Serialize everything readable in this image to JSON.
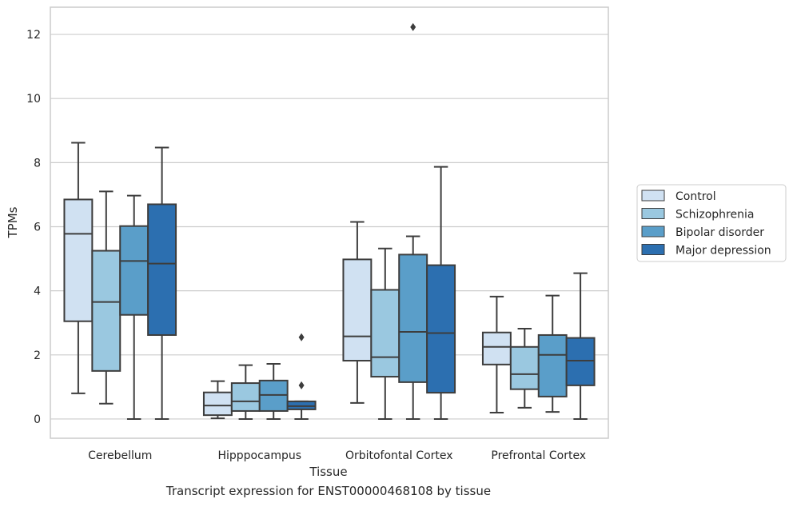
{
  "caption": "Transcript expression for ENST00000468108 by tissue",
  "chart_data": {
    "type": "box",
    "xlabel": "Tissue",
    "ylabel": "TPMs",
    "ylim": [
      -0.6,
      12.85
    ],
    "yticks": [
      0,
      2,
      4,
      6,
      8,
      10,
      12
    ],
    "grid": "horizontal",
    "legend_placement": "outside-right",
    "categories": [
      "Cerebellum",
      "Hipppocampus",
      "Orbitofontal Cortex",
      "Prefrontal Cortex"
    ],
    "series": [
      {
        "name": "Control",
        "color": "#d0e1f2",
        "boxes": [
          {
            "whislo": 0.8,
            "q1": 3.05,
            "med": 5.78,
            "q3": 6.85,
            "whishi": 8.62,
            "fliers": []
          },
          {
            "whislo": 0.02,
            "q1": 0.12,
            "med": 0.42,
            "q3": 0.83,
            "whishi": 1.18,
            "fliers": []
          },
          {
            "whislo": 0.5,
            "q1": 1.82,
            "med": 2.58,
            "q3": 4.98,
            "whishi": 6.15,
            "fliers": []
          },
          {
            "whislo": 0.2,
            "q1": 1.7,
            "med": 2.25,
            "q3": 2.7,
            "whishi": 3.82,
            "fliers": []
          }
        ]
      },
      {
        "name": "Schizophrenia",
        "color": "#9ac8e0",
        "boxes": [
          {
            "whislo": 0.48,
            "q1": 1.5,
            "med": 3.65,
            "q3": 5.25,
            "whishi": 7.1,
            "fliers": []
          },
          {
            "whislo": 0.0,
            "q1": 0.25,
            "med": 0.55,
            "q3": 1.12,
            "whishi": 1.68,
            "fliers": []
          },
          {
            "whislo": 0.0,
            "q1": 1.32,
            "med": 1.93,
            "q3": 4.03,
            "whishi": 5.32,
            "fliers": []
          },
          {
            "whislo": 0.35,
            "q1": 0.93,
            "med": 1.4,
            "q3": 2.25,
            "whishi": 2.82,
            "fliers": []
          }
        ]
      },
      {
        "name": "Bipolar disorder",
        "color": "#5a9ec9",
        "boxes": [
          {
            "whislo": 0.0,
            "q1": 3.25,
            "med": 4.93,
            "q3": 6.02,
            "whishi": 6.97,
            "fliers": []
          },
          {
            "whislo": 0.0,
            "q1": 0.25,
            "med": 0.75,
            "q3": 1.2,
            "whishi": 1.72,
            "fliers": []
          },
          {
            "whislo": 0.0,
            "q1": 1.15,
            "med": 2.72,
            "q3": 5.13,
            "whishi": 5.7,
            "fliers": [
              12.23
            ]
          },
          {
            "whislo": 0.22,
            "q1": 0.7,
            "med": 2.0,
            "q3": 2.62,
            "whishi": 3.85,
            "fliers": []
          }
        ]
      },
      {
        "name": "Major depression",
        "color": "#2c6fb0",
        "boxes": [
          {
            "whislo": 0.0,
            "q1": 2.62,
            "med": 4.85,
            "q3": 6.7,
            "whishi": 8.47,
            "fliers": []
          },
          {
            "whislo": 0.0,
            "q1": 0.3,
            "med": 0.4,
            "q3": 0.55,
            "whishi": 0.55,
            "fliers": [
              2.55,
              1.05
            ]
          },
          {
            "whislo": 0.0,
            "q1": 0.82,
            "med": 2.68,
            "q3": 4.8,
            "whishi": 7.87,
            "fliers": []
          },
          {
            "whislo": 0.0,
            "q1": 1.05,
            "med": 1.82,
            "q3": 2.53,
            "whishi": 4.55,
            "fliers": []
          }
        ]
      }
    ]
  }
}
